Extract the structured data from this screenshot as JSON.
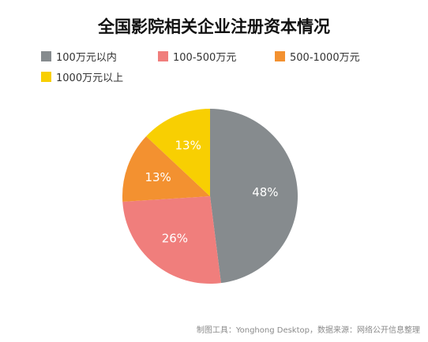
{
  "chart_data": {
    "type": "pie",
    "title": "全国影院相关企业注册资本情况",
    "slices": [
      {
        "label": "100万元以内",
        "value": 48,
        "display": "48%",
        "color": "#868b8e"
      },
      {
        "label": "100-500万元",
        "value": 26,
        "display": "26%",
        "color": "#f07e7c"
      },
      {
        "label": "500-1000万元",
        "value": 13,
        "display": "13%",
        "color": "#f39130"
      },
      {
        "label": "1000万元以上",
        "value": 13,
        "display": "13%",
        "color": "#f8cf02"
      }
    ],
    "legend_position": "top",
    "start": "12 o'clock",
    "direction": "clockwise"
  },
  "footer": "制图工具：Yonghong Desktop，数据来源：网络公开信息整理"
}
